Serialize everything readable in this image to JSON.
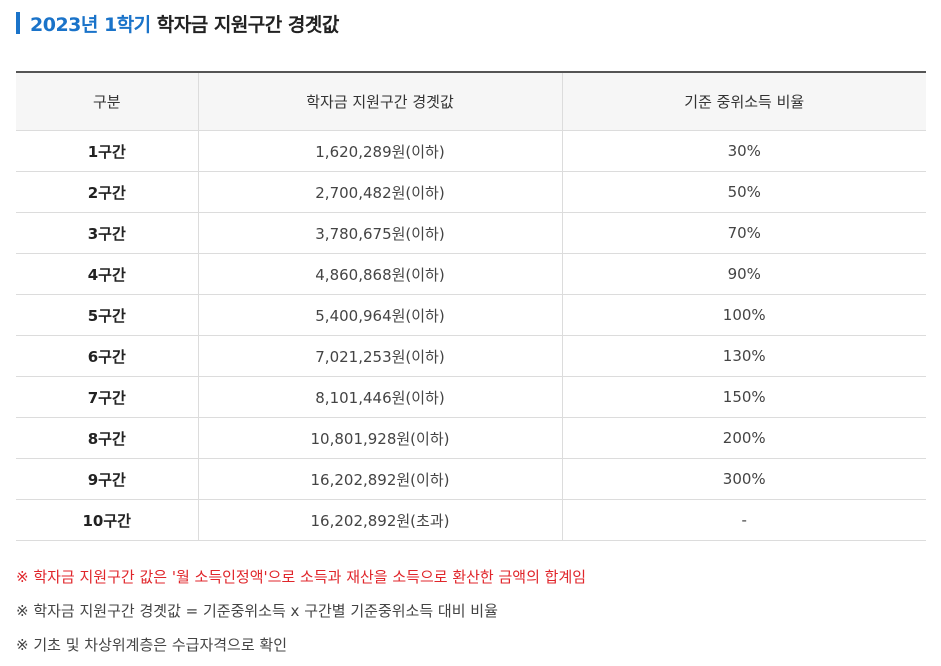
{
  "heading": {
    "accent": "2023년 1학기",
    "title": "학자금 지원구간 경곗값"
  },
  "colors": {
    "accent": "#1a73c9",
    "warning": "#e0262b"
  },
  "table": {
    "columns": [
      "구분",
      "학자금 지원구간 경곗값",
      "기준 중위소득 비율"
    ],
    "rows": [
      {
        "label": "1구간",
        "value": "1,620,289원(이하)",
        "ratio": "30%"
      },
      {
        "label": "2구간",
        "value": "2,700,482원(이하)",
        "ratio": "50%"
      },
      {
        "label": "3구간",
        "value": "3,780,675원(이하)",
        "ratio": "70%"
      },
      {
        "label": "4구간",
        "value": "4,860,868원(이하)",
        "ratio": "90%"
      },
      {
        "label": "5구간",
        "value": "5,400,964원(이하)",
        "ratio": "100%"
      },
      {
        "label": "6구간",
        "value": "7,021,253원(이하)",
        "ratio": "130%"
      },
      {
        "label": "7구간",
        "value": "8,101,446원(이하)",
        "ratio": "150%"
      },
      {
        "label": "8구간",
        "value": "10,801,928원(이하)",
        "ratio": "200%"
      },
      {
        "label": "9구간",
        "value": "16,202,892원(이하)",
        "ratio": "300%"
      },
      {
        "label": "10구간",
        "value": "16,202,892원(초과)",
        "ratio": "-"
      }
    ]
  },
  "notes": [
    "※ 학자금 지원구간 값은 '월 소득인정액'으로 소득과 재산을 소득으로 환산한 금액의 합계임",
    "※ 학자금 지원구간 경곗값 = 기준중위소득 x 구간별 기준중위소득 대비 비율",
    "※ 기초 및 차상위계층은 수급자격으로 확인"
  ]
}
